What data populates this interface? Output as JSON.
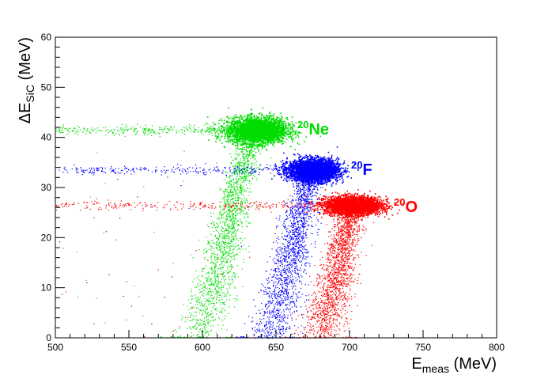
{
  "chart_data": {
    "type": "scatter",
    "xlabel": {
      "main": "E",
      "sub": "meas",
      "unit": " (MeV)"
    },
    "ylabel": {
      "main": "ΔE",
      "sub": "SiC",
      "unit": " (MeV)"
    },
    "xlim": [
      500,
      800
    ],
    "ylim": [
      0,
      60
    ],
    "xticks": [
      500,
      550,
      600,
      650,
      700,
      750,
      800
    ],
    "yticks": [
      0,
      10,
      20,
      30,
      40,
      50,
      60
    ],
    "legend": "none",
    "grid": false,
    "series": [
      {
        "name": "20Ne",
        "mass": "20",
        "symbol": "Ne",
        "color": "#00dd00",
        "blob": {
          "x": 637,
          "y": 41.5,
          "sx": 20,
          "sy": 2.3
        },
        "tail": [
          [
            596,
            0
          ],
          [
            606,
            8
          ],
          [
            614,
            18
          ],
          [
            622,
            28
          ],
          [
            630,
            37
          ],
          [
            637,
            41.5
          ]
        ],
        "band": {
          "y": 41.5,
          "x0": 500,
          "x1": 625
        }
      },
      {
        "name": "20F",
        "mass": "20",
        "symbol": "F",
        "color": "#0000ff",
        "blob": {
          "x": 675,
          "y": 33.5,
          "sx": 17,
          "sy": 2.0
        },
        "tail": [
          [
            645,
            0
          ],
          [
            652,
            6
          ],
          [
            658,
            14
          ],
          [
            664,
            22
          ],
          [
            670,
            29
          ],
          [
            675,
            33.5
          ]
        ],
        "band": {
          "y": 33.5,
          "x0": 500,
          "x1": 665
        }
      },
      {
        "name": "20O",
        "mass": "20",
        "symbol": "O",
        "color": "#ff0000",
        "blob": {
          "x": 702,
          "y": 26.5,
          "sx": 19,
          "sy": 1.6
        },
        "tail": [
          [
            680,
            0
          ],
          [
            686,
            7
          ],
          [
            692,
            14
          ],
          [
            697,
            21
          ],
          [
            702,
            26.5
          ]
        ],
        "band": {
          "y": 26.5,
          "x0": 500,
          "x1": 695
        }
      }
    ]
  }
}
